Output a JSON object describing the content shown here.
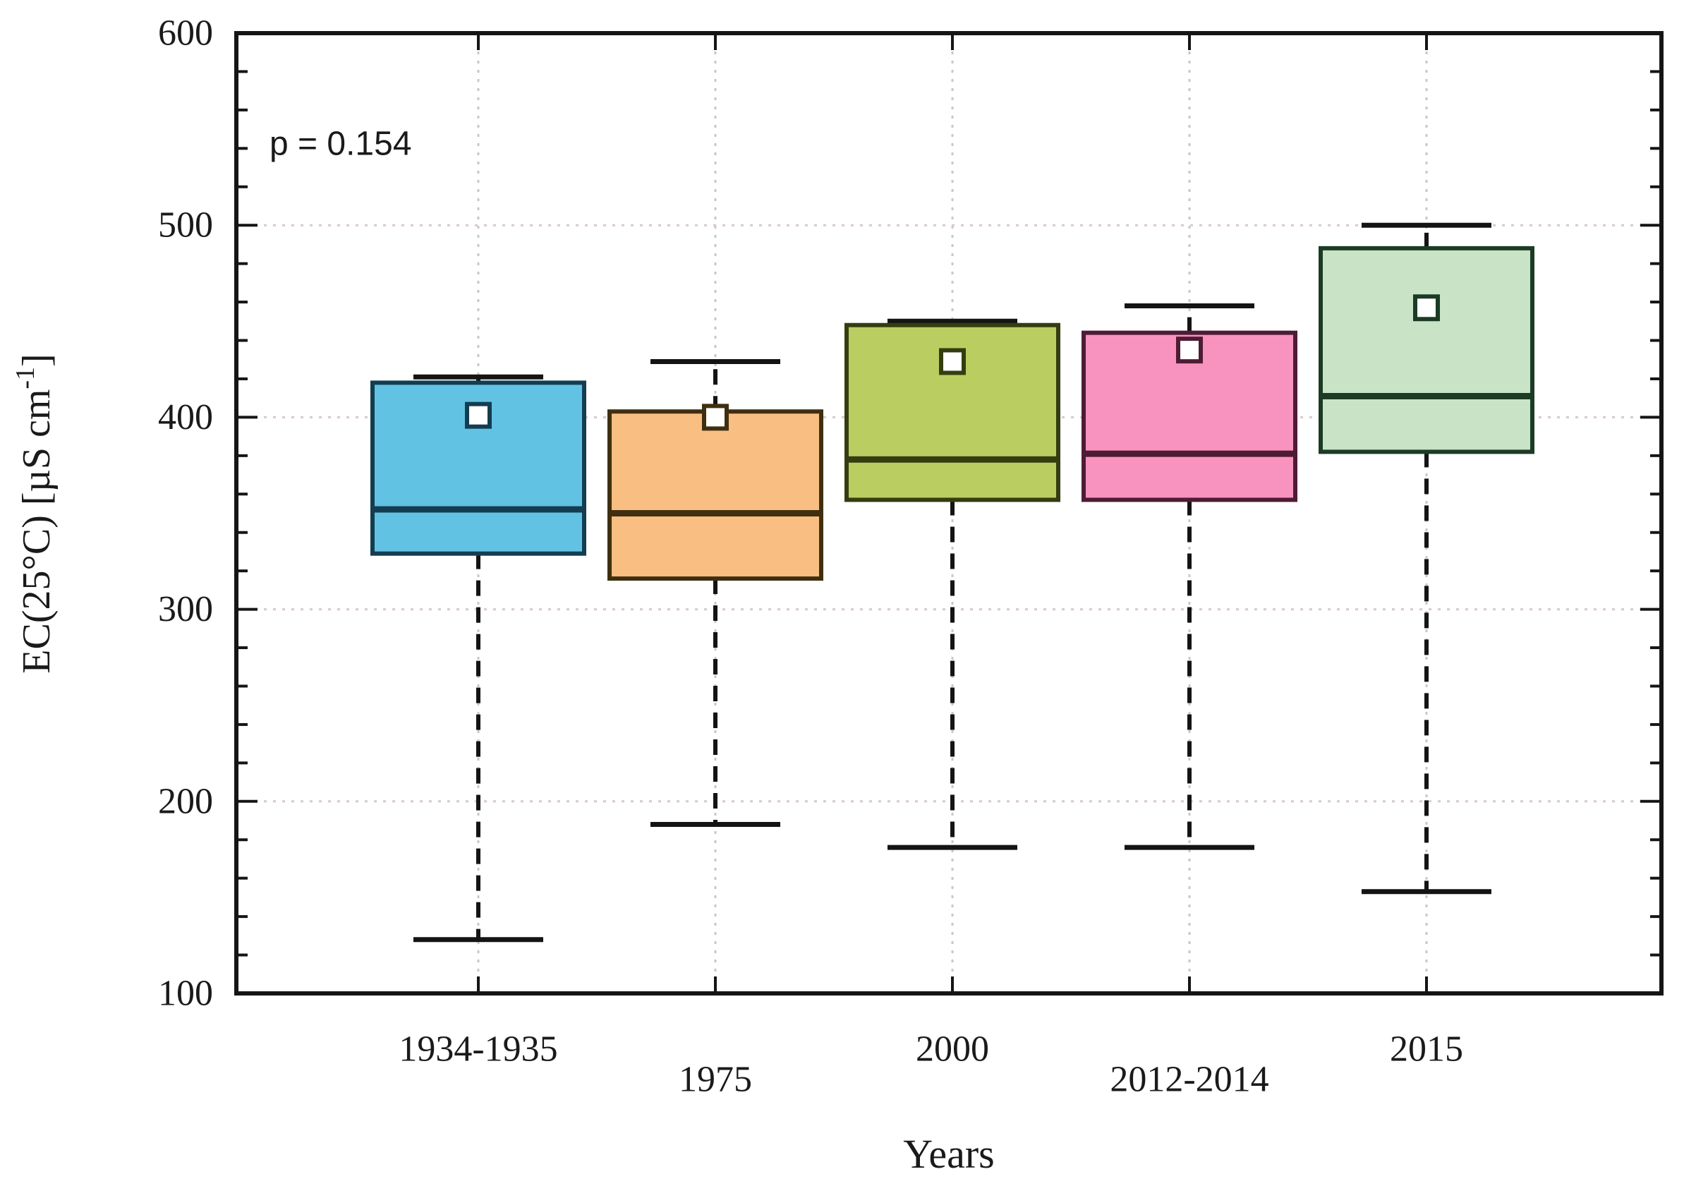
{
  "chart_data": {
    "type": "box",
    "title": "",
    "annotation": "p = 0.154",
    "xlabel": "Years",
    "ylabel": {
      "main": "EC(25°C)  [µS cm",
      "superscript": "-1",
      "close": "]"
    },
    "categories": [
      "1934-1935",
      "1975",
      "2000",
      "2012-2014",
      "2015"
    ],
    "ylim": [
      100,
      600
    ],
    "ytick_step": 100,
    "ytick_minor_step": 20,
    "ytick_labels": [
      "100",
      "200",
      "300",
      "400",
      "500",
      "600"
    ],
    "grid": "dotted",
    "legend_position": "none",
    "boxes": [
      {
        "label": "1934-1935",
        "whisker_low": 128,
        "q1": 329,
        "median": 352,
        "mean": 401,
        "q3": 418,
        "whisker_high": 421,
        "fill": "#62c2e3",
        "border": "#133d50"
      },
      {
        "label": "1975",
        "whisker_low": 188,
        "q1": 316,
        "median": 350,
        "mean": 400,
        "q3": 403,
        "whisker_high": 429,
        "fill": "#f9be82",
        "border": "#3f2f10"
      },
      {
        "label": "2000",
        "whisker_low": 176,
        "q1": 357,
        "median": 378,
        "mean": 429,
        "q3": 448,
        "whisker_high": 450,
        "fill": "#bacd60",
        "border": "#333d10"
      },
      {
        "label": "2012-2014",
        "whisker_low": 176,
        "q1": 357,
        "median": 381,
        "mean": 435,
        "q3": 444,
        "whisker_high": 458,
        "fill": "#f893bf",
        "border": "#4e1c34"
      },
      {
        "label": "2015",
        "whisker_low": 153,
        "q1": 382,
        "median": 411,
        "mean": 457,
        "q3": 488,
        "whisker_high": 500,
        "fill": "#c8e3c6",
        "border": "#1c3b24"
      }
    ],
    "colors": {
      "frame": "#151515",
      "text": "#1a1a1a",
      "whisker": "#141414",
      "grid_horizontal": "#d9c9c9",
      "grid_vertical": "#c8c8c8",
      "mean_fill": "#ffffff"
    }
  }
}
